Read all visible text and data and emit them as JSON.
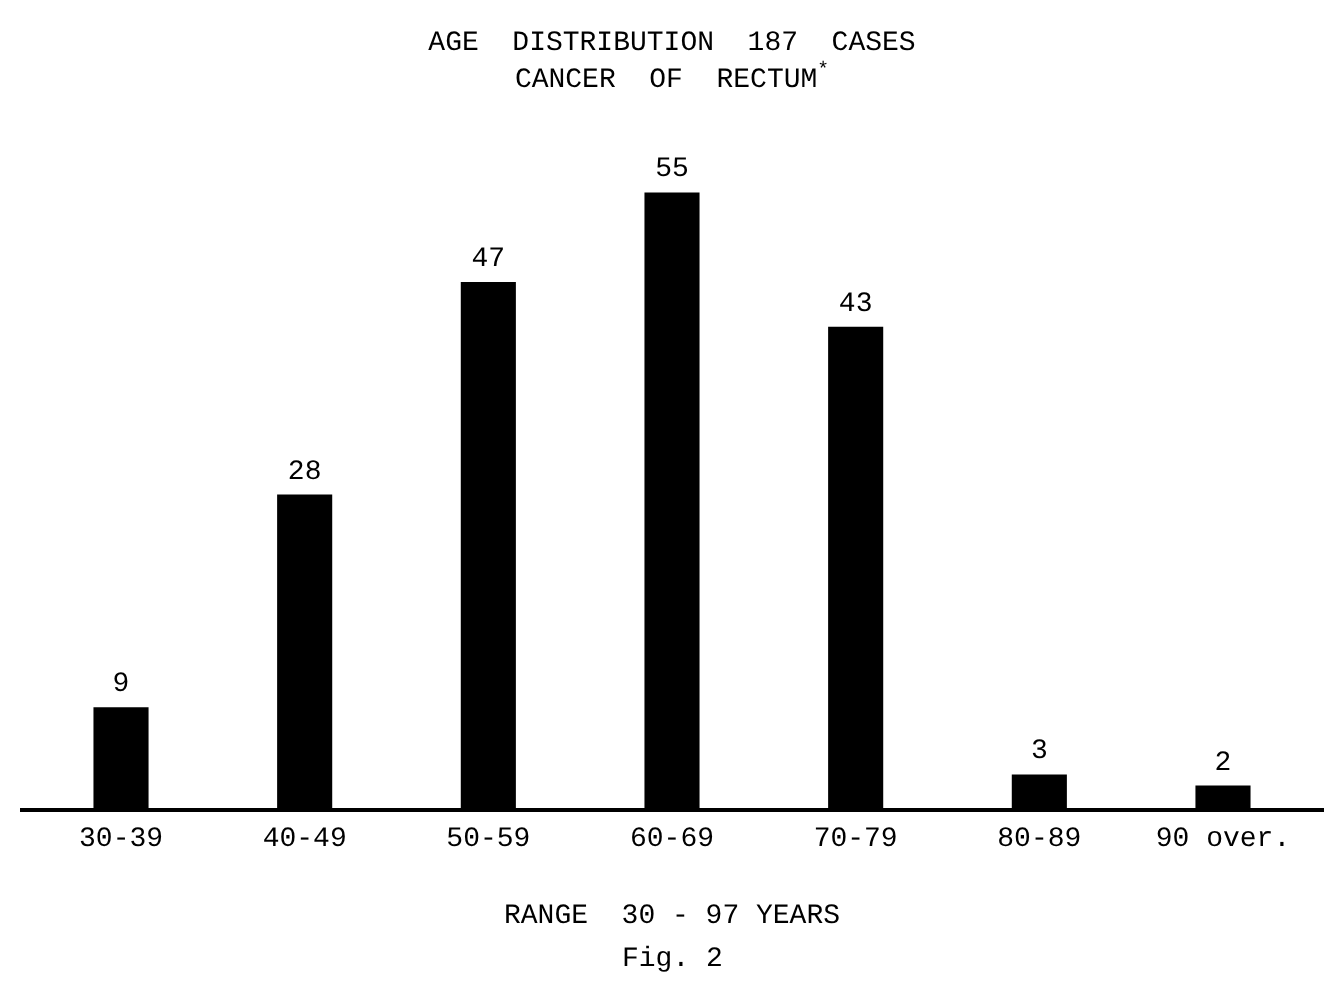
{
  "chart_data": {
    "type": "bar",
    "title": "AGE  DISTRIBUTION  187  CASES\nCANCER  OF  RECTUM$^{*}$",
    "categories": [
      "30-39",
      "40-49",
      "50-59",
      "60-69",
      "70-79",
      "80-89",
      "90 over."
    ],
    "values": [
      9,
      28,
      47,
      55,
      43,
      3,
      2
    ],
    "color": "#000000",
    "data_labels": true,
    "xlabel": "RANGE  30 - 97 YEARS",
    "annotations": [
      "Fig. 2"
    ],
    "grid": false,
    "legend": false
  }
}
